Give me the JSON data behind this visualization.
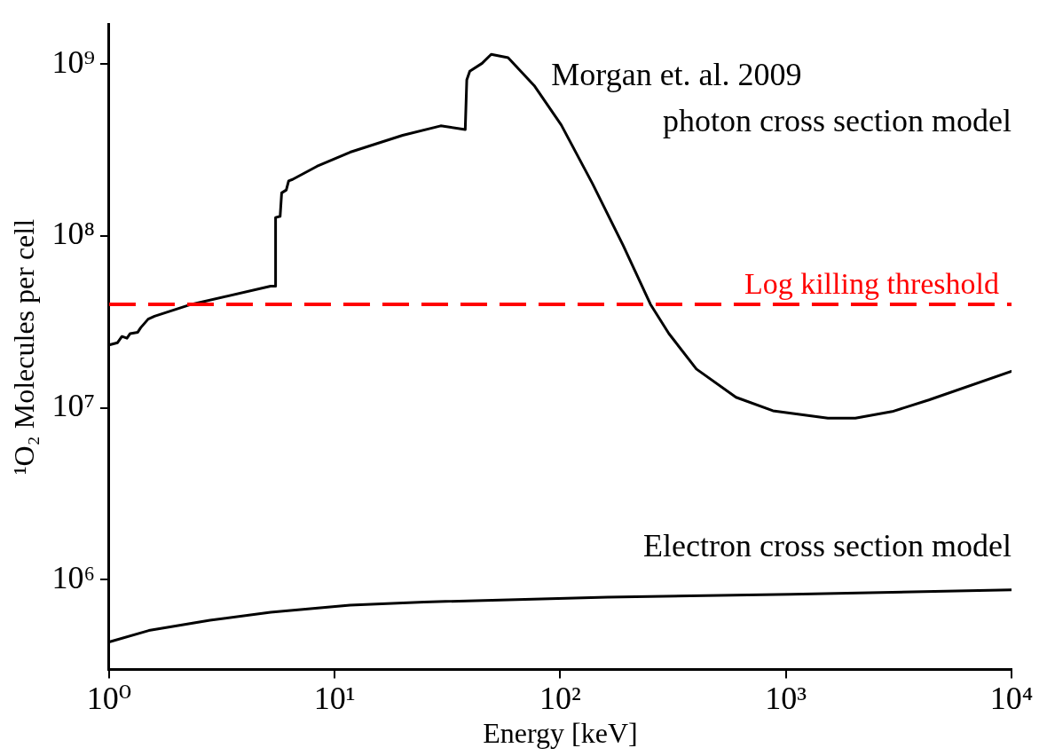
{
  "chart_data": {
    "type": "line",
    "xlabel": "Energy [keV]",
    "ylabel": "¹O₂ Molecules per cell",
    "log": "xy",
    "grid": false,
    "legend": false,
    "marker": "none",
    "line_style": "solid",
    "xlim": [
      1,
      10000
    ],
    "xticks": [
      {
        "value": 1,
        "label": "10⁰"
      },
      {
        "value": 10,
        "label": "10¹"
      },
      {
        "value": 100,
        "label": "10²"
      },
      {
        "value": 1000,
        "label": "10³"
      },
      {
        "value": 10000,
        "label": "10⁴"
      }
    ],
    "ylim": [
      300000,
      1700000000
    ],
    "yticks": [
      {
        "value": 1000000,
        "label": "10⁶"
      },
      {
        "value": 10000000,
        "label": "10⁷"
      },
      {
        "value": 100000000,
        "label": "10⁸"
      },
      {
        "value": 1000000000,
        "label": "10⁹"
      }
    ],
    "series": [
      {
        "name": "Morgan et. al. 2009 photon cross section model",
        "color": "#000000",
        "x": [
          1,
          1.09,
          1.14,
          1.2,
          1.24,
          1.34,
          1.38,
          1.49,
          1.59,
          2.32,
          5.2,
          5.47,
          5.47,
          5.73,
          5.82,
          6.1,
          6.25,
          6.5,
          8.34,
          11.7,
          20,
          29.5,
          37.9,
          38.5,
          39.7,
          45,
          49.4,
          58.7,
          76.6,
          101,
          139,
          190,
          251,
          303,
          401,
          601,
          876,
          1535,
          2032,
          2958,
          4300,
          10000
        ],
        "values": [
          23200000,
          23900000,
          26000000,
          25400000,
          27000000,
          27500000,
          29200000,
          32800000,
          34100000,
          40000000,
          51000000,
          51000000,
          128000000,
          130000000,
          178000000,
          185000000,
          209000000,
          213000000,
          254000000,
          307000000,
          385000000,
          437000000,
          416000000,
          810000000,
          910000000,
          1010000000,
          1140000000,
          1090000000,
          750000000,
          442000000,
          201000000,
          88000000,
          40000000,
          27000000,
          16800000,
          11500000,
          9600000,
          8700000,
          8700000,
          9500000,
          11100000,
          16300000
        ]
      },
      {
        "name": "Electron cross section model",
        "color": "#000000",
        "x": [
          1,
          1.5,
          2.8,
          5.2,
          11.7,
          24.9,
          162,
          1055,
          10000
        ],
        "values": [
          433000,
          505000,
          580000,
          645000,
          710000,
          740000,
          790000,
          820000,
          870000
        ]
      }
    ],
    "ref_lines": [
      {
        "axis": "y",
        "value": 40000000,
        "label": "Log killing threshold",
        "color": "#ff0000",
        "line_style": "dashed"
      }
    ]
  }
}
